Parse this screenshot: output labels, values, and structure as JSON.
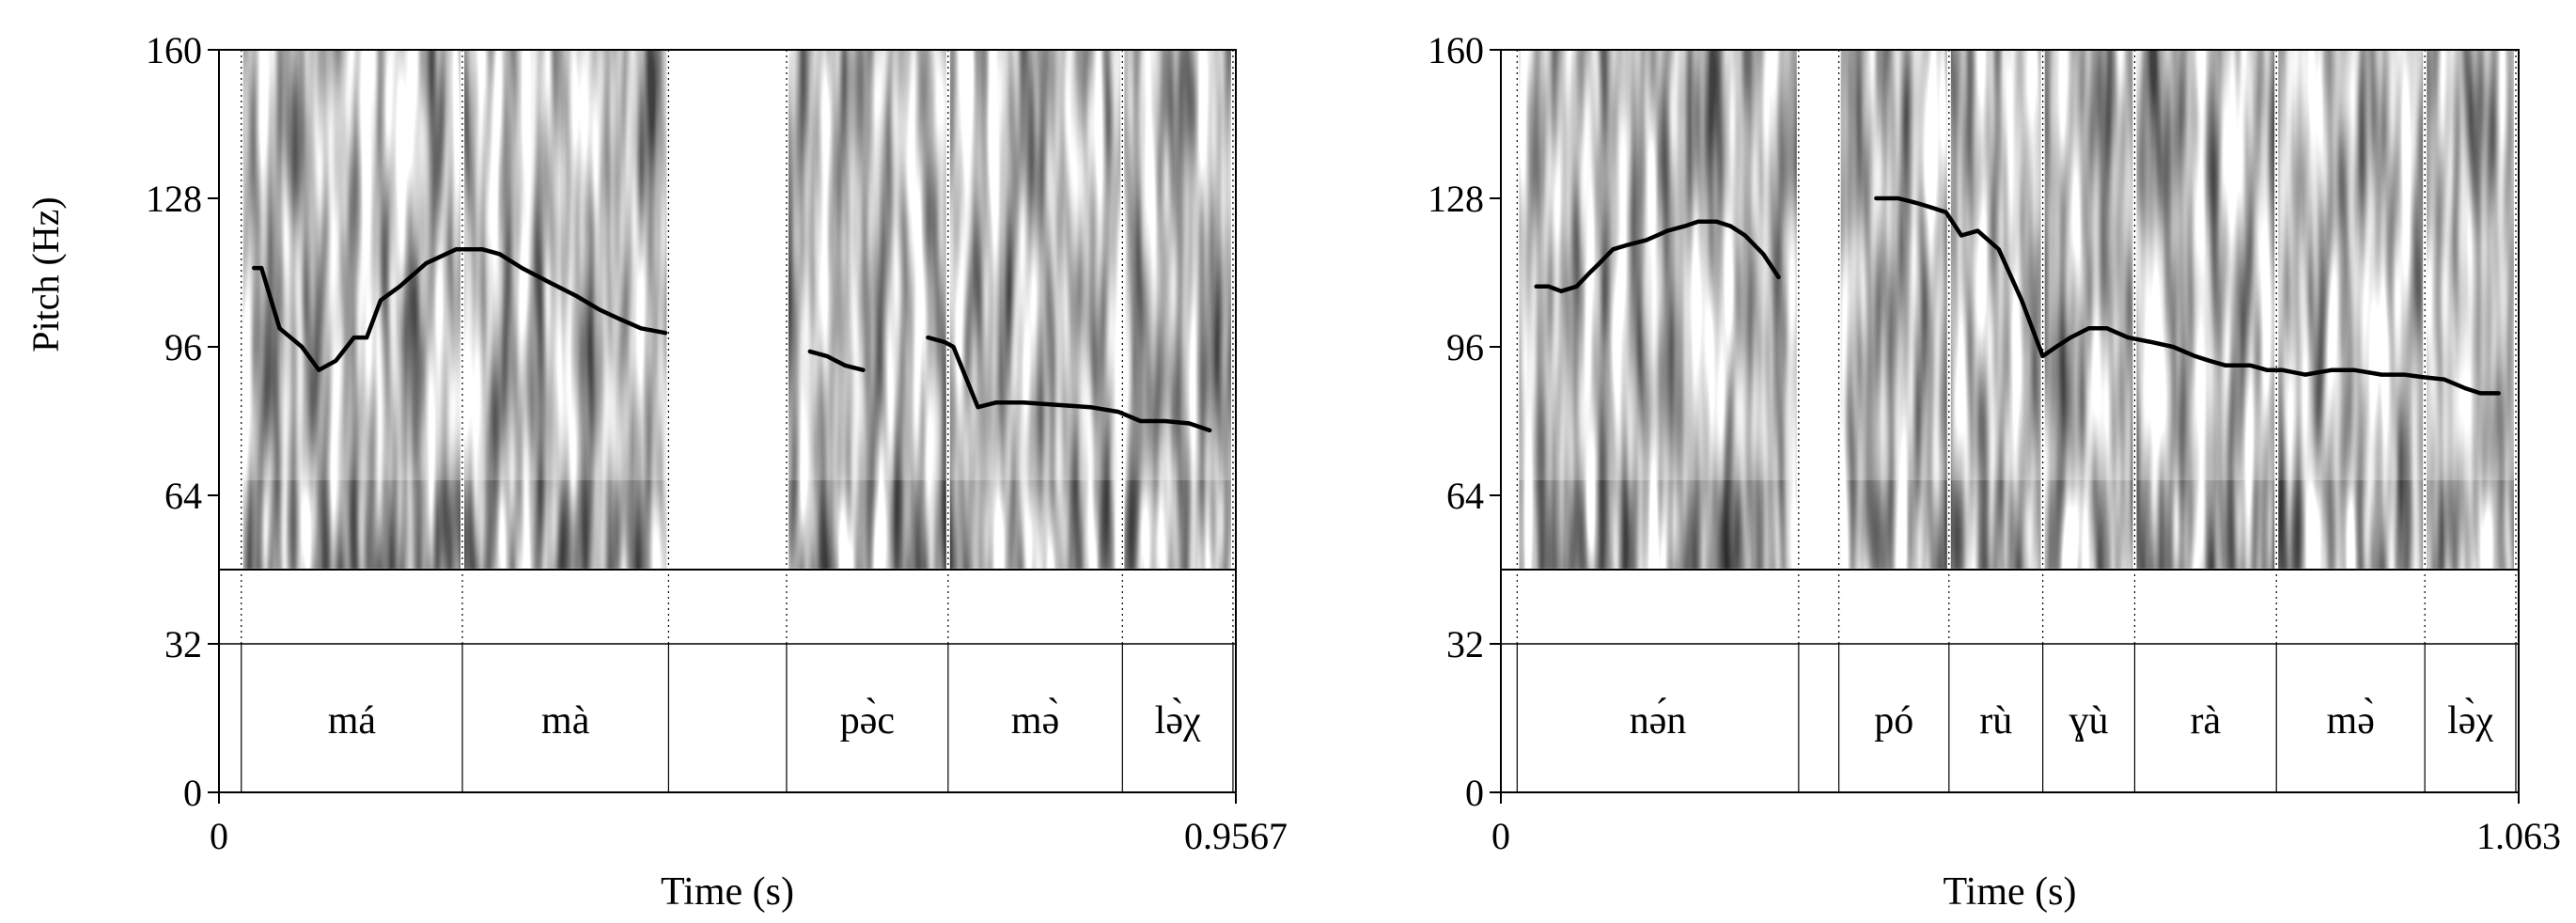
{
  "figure": {
    "ylabel": "Pitch (Hz)",
    "xlabel": "Time (s)"
  },
  "chart_data": [
    {
      "type": "line",
      "xlabel": "Time (s)",
      "ylabel": "Pitch (Hz)",
      "xlim": [
        0,
        0.9567
      ],
      "ylim": [
        0,
        160
      ],
      "pitch_region": [
        48,
        160
      ],
      "x_tick_labels": [
        "0",
        "0.9567"
      ],
      "y_ticks": [
        0,
        32,
        64,
        96,
        128,
        160
      ],
      "y_tick_labels": [
        "0",
        "32",
        "64",
        "96",
        "128",
        "160"
      ],
      "syllable_boundaries": [
        0.021,
        0.229,
        0.423,
        0.534,
        0.686,
        0.85,
        0.954
      ],
      "syllables": [
        {
          "label": "má",
          "start": 0.021,
          "end": 0.229
        },
        {
          "label": "mà",
          "start": 0.229,
          "end": 0.423
        },
        {
          "label": "",
          "start": 0.423,
          "end": 0.534
        },
        {
          "label": "pə̀c",
          "start": 0.534,
          "end": 0.686
        },
        {
          "label": "mə̀",
          "start": 0.686,
          "end": 0.85
        },
        {
          "label": "lə̀χ",
          "start": 0.85,
          "end": 0.954
        }
      ],
      "series": [
        {
          "x": [
            0.033,
            0.04,
            0.057,
            0.078,
            0.094,
            0.11,
            0.127,
            0.139,
            0.152,
            0.17,
            0.195,
            0.223,
            0.248,
            0.264,
            0.285,
            0.31,
            0.336,
            0.358,
            0.377,
            0.397,
            0.42
          ],
          "y": [
            113,
            113,
            100,
            96,
            91,
            93,
            98,
            98,
            106,
            109,
            114,
            117,
            117,
            116,
            113,
            110,
            107,
            104,
            102,
            100,
            99
          ]
        },
        {
          "x": [
            0.556,
            0.572,
            0.589,
            0.606
          ],
          "y": [
            95,
            94,
            92,
            91
          ]
        },
        {
          "x": [
            0.667,
            0.683,
            0.691,
            0.714,
            0.731,
            0.757,
            0.788,
            0.82,
            0.846,
            0.867,
            0.89,
            0.913,
            0.932
          ],
          "y": [
            98,
            97,
            96,
            83,
            84,
            84,
            83.5,
            83,
            82,
            80,
            80,
            79.5,
            78
          ]
        }
      ]
    },
    {
      "type": "line",
      "xlabel": "Time (s)",
      "ylabel": "Pitch (Hz)",
      "xlim": [
        0,
        1.063
      ],
      "ylim": [
        0,
        160
      ],
      "pitch_region": [
        48,
        160
      ],
      "x_tick_labels": [
        "0",
        "1.063"
      ],
      "y_ticks": [
        0,
        32,
        64,
        96,
        128,
        160
      ],
      "y_tick_labels": [
        "0",
        "32",
        "64",
        "96",
        "128",
        "160"
      ],
      "syllable_boundaries": [
        0.017,
        0.311,
        0.353,
        0.468,
        0.566,
        0.662,
        0.81,
        0.965,
        1.06
      ],
      "syllables": [
        {
          "label": "nə́n",
          "start": 0.017,
          "end": 0.311
        },
        {
          "label": "",
          "start": 0.311,
          "end": 0.353
        },
        {
          "label": "pó",
          "start": 0.353,
          "end": 0.468
        },
        {
          "label": "rù",
          "start": 0.468,
          "end": 0.566
        },
        {
          "label": "ɣù",
          "start": 0.566,
          "end": 0.662
        },
        {
          "label": "rà",
          "start": 0.662,
          "end": 0.81
        },
        {
          "label": "mə̀",
          "start": 0.81,
          "end": 0.965
        },
        {
          "label": "lə̀χ",
          "start": 0.965,
          "end": 1.06
        }
      ],
      "series": [
        {
          "x": [
            0.037,
            0.05,
            0.063,
            0.079,
            0.093,
            0.103,
            0.117,
            0.133,
            0.152,
            0.174,
            0.192,
            0.206,
            0.225,
            0.24,
            0.255,
            0.274,
            0.29
          ],
          "y": [
            109,
            109,
            108,
            109,
            112,
            114,
            117,
            118,
            119,
            121,
            122,
            123,
            123,
            122,
            120,
            116,
            111
          ]
        },
        {
          "x": [
            0.392,
            0.415,
            0.434,
            0.45,
            0.465,
            0.481,
            0.498,
            0.52,
            0.544,
            0.566,
            0.58,
            0.595,
            0.614,
            0.633,
            0.655,
            0.68,
            0.702,
            0.725,
            0.74,
            0.757,
            0.783,
            0.8,
            0.816,
            0.84,
            0.868,
            0.891,
            0.92,
            0.944,
            0.962,
            0.985,
            1.008,
            1.023,
            1.042
          ],
          "y": [
            128,
            128,
            127,
            126,
            125,
            120,
            121,
            117,
            106,
            94,
            96,
            98,
            100,
            100,
            98,
            97,
            96,
            94,
            93,
            92,
            92,
            91,
            91,
            90,
            91,
            91,
            90,
            90,
            89.5,
            89,
            87,
            86,
            86
          ]
        }
      ]
    }
  ]
}
